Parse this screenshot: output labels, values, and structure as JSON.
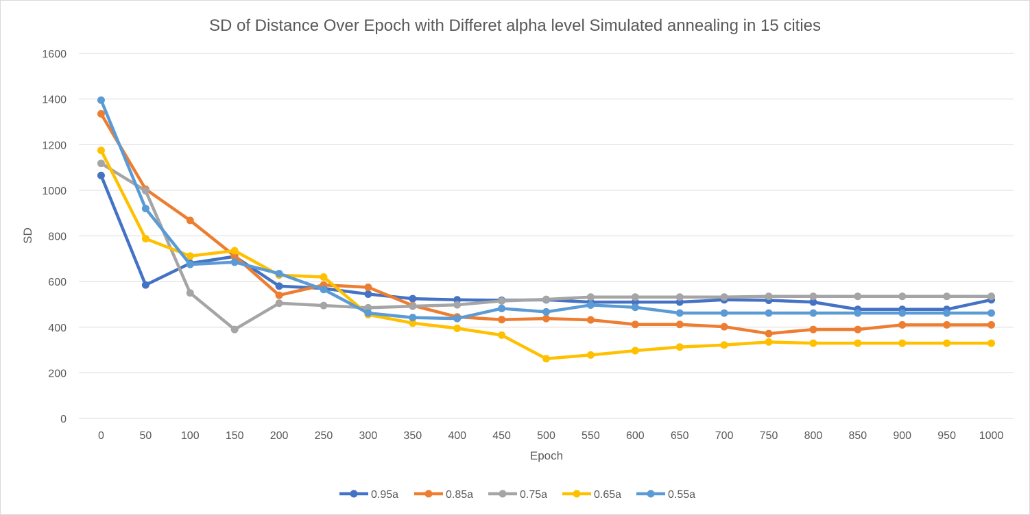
{
  "chart_data": {
    "type": "line",
    "title": "SD of Distance Over Epoch with Differet alpha level Simulated annealing in 15 cities",
    "xlabel": "Epoch",
    "ylabel": "SD",
    "ylim": [
      0,
      1600
    ],
    "yticks": [
      0,
      200,
      400,
      600,
      800,
      1000,
      1200,
      1400,
      1600
    ],
    "categories": [
      "0",
      "50",
      "100",
      "150",
      "200",
      "250",
      "300",
      "350",
      "400",
      "450",
      "500",
      "550",
      "600",
      "650",
      "700",
      "750",
      "800",
      "850",
      "900",
      "950",
      "1000"
    ],
    "grid": true,
    "legend_position": "bottom",
    "series": [
      {
        "name": "0.95a",
        "color": "#4472c4",
        "values": [
          1065,
          585,
          680,
          710,
          580,
          570,
          545,
          525,
          520,
          518,
          520,
          510,
          510,
          510,
          520,
          518,
          510,
          478,
          478,
          478,
          520
        ]
      },
      {
        "name": "0.85a",
        "color": "#ed7d31",
        "values": [
          1335,
          1005,
          868,
          712,
          540,
          585,
          575,
          495,
          445,
          433,
          438,
          432,
          412,
          412,
          402,
          372,
          390,
          390,
          410,
          410,
          410
        ]
      },
      {
        "name": "0.75a",
        "color": "#a5a5a5",
        "values": [
          1118,
          998,
          550,
          390,
          505,
          495,
          485,
          492,
          498,
          515,
          522,
          532,
          532,
          532,
          532,
          535,
          535,
          535,
          535,
          535,
          535
        ]
      },
      {
        "name": "0.65a",
        "color": "#ffc000",
        "values": [
          1175,
          788,
          712,
          735,
          628,
          620,
          455,
          418,
          395,
          365,
          262,
          278,
          297,
          313,
          322,
          335,
          330,
          330,
          330,
          330,
          330
        ]
      },
      {
        "name": "0.55a",
        "color": "#5b9bd5",
        "values": [
          1395,
          920,
          675,
          685,
          635,
          565,
          462,
          442,
          438,
          482,
          467,
          497,
          487,
          462,
          462,
          462,
          462,
          462,
          462,
          462,
          462
        ]
      }
    ]
  }
}
